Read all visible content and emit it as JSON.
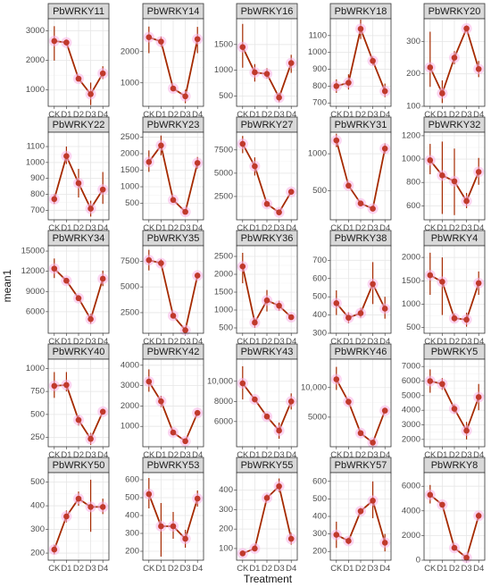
{
  "chart_data": {
    "type": "line",
    "xlabel": "Treatment",
    "ylabel": "mean1",
    "categories": [
      "CK",
      "D1",
      "D2",
      "D3",
      "D4"
    ],
    "colors": {
      "line": "#a52a00",
      "point": "#c0392b",
      "error_bar": "#a52a00",
      "halo": "#f7b3e5"
    },
    "grid": true,
    "panels": [
      {
        "title": "PbWRKY11",
        "ylim": [
          450,
          3400
        ],
        "ticks": [
          1000,
          2000,
          3000
        ],
        "tick_labels": [
          "1000",
          "2000",
          "3000"
        ],
        "values": [
          2650,
          2600,
          1380,
          860,
          1560
        ],
        "err_low": [
          1990,
          2500,
          1300,
          490,
          1370
        ],
        "err_high": [
          3150,
          2700,
          1450,
          1250,
          1800
        ]
      },
      {
        "title": "PbWRKY14",
        "ylim": [
          250,
          3050
        ],
        "ticks": [
          1000,
          2000
        ],
        "tick_labels": [
          "1000",
          "2000"
        ],
        "values": [
          2460,
          2320,
          820,
          570,
          2400
        ],
        "err_low": [
          1950,
          2150,
          750,
          350,
          1950
        ],
        "err_high": [
          2800,
          2480,
          890,
          780,
          2790
        ]
      },
      {
        "title": "PbWRKY16",
        "ylim": [
          300,
          2000
        ],
        "ticks": [
          500,
          1000,
          1500
        ],
        "tick_labels": [
          "500",
          "1000",
          "1500"
        ],
        "values": [
          1450,
          960,
          930,
          470,
          1140
        ],
        "err_low": [
          1050,
          780,
          840,
          380,
          950
        ],
        "err_high": [
          1900,
          1120,
          1040,
          560,
          1300
        ]
      },
      {
        "title": "PbWRKY18",
        "ylim": [
          680,
          1200
        ],
        "ticks": [
          700,
          800,
          900,
          1000,
          1100
        ],
        "tick_labels": [
          "700",
          "800",
          "900",
          "1000",
          "1100"
        ],
        "values": [
          800,
          820,
          1140,
          950,
          770
        ],
        "err_low": [
          760,
          780,
          1080,
          925,
          735
        ],
        "err_high": [
          840,
          870,
          1195,
          975,
          815
        ]
      },
      {
        "title": "PbWRKY20",
        "ylim": [
          100,
          370
        ],
        "ticks": [
          100,
          200,
          300
        ],
        "tick_labels": [
          "100",
          "200",
          "300"
        ],
        "values": [
          220,
          140,
          250,
          340,
          215
        ],
        "err_low": [
          160,
          110,
          230,
          330,
          190
        ],
        "err_high": [
          330,
          180,
          270,
          350,
          240
        ]
      },
      {
        "title": "PbWRKY22",
        "ylim": [
          640,
          1190
        ],
        "ticks": [
          700,
          800,
          900,
          1000,
          1100
        ],
        "tick_labels": [
          "700",
          "800",
          "900",
          "1000",
          "1100"
        ],
        "values": [
          770,
          1040,
          870,
          710,
          830
        ],
        "err_low": [
          740,
          990,
          780,
          660,
          740
        ],
        "err_high": [
          800,
          1100,
          960,
          760,
          940
        ]
      },
      {
        "title": "PbWRKY23",
        "ylim": [
          0,
          2650
        ],
        "ticks": [
          500,
          1000,
          1500,
          2000,
          2500
        ],
        "tick_labels": [
          "500",
          "1000",
          "1500",
          "2000",
          "2500"
        ],
        "values": [
          1750,
          2250,
          600,
          240,
          1720
        ],
        "err_low": [
          1450,
          1950,
          560,
          190,
          1550
        ],
        "err_high": [
          2100,
          2550,
          640,
          290,
          1900
        ]
      },
      {
        "title": "PbWRKY27",
        "ylim": [
          0,
          9400
        ],
        "ticks": [
          2500,
          5000,
          7500
        ],
        "tick_labels": [
          "2500",
          "5000",
          "7500"
        ],
        "values": [
          8150,
          5750,
          1700,
          800,
          3000
        ],
        "err_low": [
          7150,
          4750,
          1500,
          600,
          2800
        ],
        "err_high": [
          9000,
          6700,
          1900,
          1000,
          3200
        ]
      },
      {
        "title": "PbWRKY31",
        "ylim": [
          110,
          1290
        ],
        "ticks": [
          500,
          1000
        ],
        "tick_labels": [
          "500",
          "1000"
        ],
        "values": [
          1180,
          570,
          330,
          260,
          1070
        ],
        "err_low": [
          1090,
          540,
          310,
          240,
          1000
        ],
        "err_high": [
          1270,
          600,
          350,
          280,
          1140
        ]
      },
      {
        "title": "PbWRKY32",
        "ylim": [
          480,
          1230
        ],
        "ticks": [
          600,
          800,
          1000,
          1200
        ],
        "tick_labels": [
          "600",
          "800",
          "1000",
          "1200"
        ],
        "values": [
          990,
          860,
          810,
          640,
          890
        ],
        "err_low": [
          870,
          530,
          520,
          580,
          780
        ],
        "err_high": [
          1130,
          1150,
          1090,
          710,
          1010
        ]
      },
      {
        "title": "PbWRKY34",
        "ylim": [
          2800,
          15800
        ],
        "ticks": [
          6000,
          9000,
          12000,
          15000
        ],
        "tick_labels": [
          "6000",
          "9000",
          "12000",
          "15000"
        ],
        "values": [
          12400,
          10600,
          8000,
          4900,
          10900
        ],
        "err_low": [
          11000,
          10200,
          7600,
          4200,
          9800
        ],
        "err_high": [
          13900,
          11000,
          8500,
          5700,
          12100
        ]
      },
      {
        "title": "PbWRKY35",
        "ylim": [
          500,
          9000
        ],
        "ticks": [
          2500,
          5000,
          7500
        ],
        "tick_labels": [
          "2500",
          "5000",
          "7500"
        ],
        "values": [
          7600,
          7300,
          2200,
          800,
          6100
        ],
        "err_low": [
          6600,
          6900,
          2000,
          650,
          5800
        ],
        "err_high": [
          8600,
          7700,
          2400,
          950,
          6400
        ]
      },
      {
        "title": "PbWRKY36",
        "ylim": [
          350,
          2800
        ],
        "ticks": [
          500,
          1000,
          1500,
          2000,
          2500
        ],
        "tick_labels": [
          "500",
          "1000",
          "1500",
          "2000",
          "2500"
        ],
        "values": [
          2220,
          650,
          1270,
          1120,
          800
        ],
        "err_low": [
          1750,
          500,
          960,
          980,
          740
        ],
        "err_high": [
          2600,
          760,
          1560,
          1260,
          870
        ]
      },
      {
        "title": "PbWRKY38",
        "ylim": [
          300,
          780
        ],
        "ticks": [
          300,
          400,
          500,
          600,
          700
        ],
        "tick_labels": [
          "300",
          "400",
          "500",
          "600",
          "700"
        ],
        "values": [
          465,
          385,
          410,
          570,
          435
        ],
        "err_low": [
          400,
          355,
          385,
          460,
          380
        ],
        "err_high": [
          535,
          415,
          440,
          690,
          500
        ]
      },
      {
        "title": "PbWRKY4",
        "ylim": [
          380,
          2250
        ],
        "ticks": [
          500,
          1000,
          1500,
          2000
        ],
        "tick_labels": [
          "500",
          "1000",
          "1500",
          "2000"
        ],
        "values": [
          1620,
          1480,
          700,
          670,
          1450
        ],
        "err_low": [
          1200,
          770,
          620,
          520,
          1200
        ],
        "err_high": [
          2100,
          2000,
          800,
          820,
          1700
        ]
      },
      {
        "title": "PbWRKY40",
        "ylim": [
          150,
          1100
        ],
        "ticks": [
          250,
          500,
          750,
          1000
        ],
        "tick_labels": [
          "250",
          "500",
          "750",
          "1000"
        ],
        "values": [
          810,
          820,
          440,
          235,
          530
        ],
        "err_low": [
          680,
          750,
          380,
          170,
          500
        ],
        "err_high": [
          960,
          960,
          490,
          300,
          560
        ]
      },
      {
        "title": "PbWRKY42",
        "ylim": [
          0,
          4300
        ],
        "ticks": [
          1000,
          2000,
          3000,
          4000
        ],
        "tick_labels": [
          "1000",
          "2000",
          "3000",
          "4000"
        ],
        "values": [
          3200,
          2230,
          700,
          270,
          1660
        ],
        "err_low": [
          2700,
          1950,
          600,
          180,
          1560
        ],
        "err_high": [
          3800,
          2500,
          800,
          360,
          1760
        ]
      },
      {
        "title": "PbWRKY43",
        "ylim": [
          3500,
          12200
        ],
        "ticks": [
          6000,
          8000,
          10000
        ],
        "tick_labels": [
          "6000",
          "8000",
          "10,000"
        ],
        "values": [
          9800,
          8200,
          6500,
          5100,
          8000
        ],
        "err_low": [
          8200,
          7900,
          6200,
          4300,
          7200
        ],
        "err_high": [
          11500,
          8500,
          6800,
          5900,
          8800
        ]
      },
      {
        "title": "PbWRKY46",
        "ylim": [
          0,
          14800
        ],
        "ticks": [
          5000,
          10000
        ],
        "tick_labels": [
          "5000",
          "10,000"
        ],
        "values": [
          11400,
          7600,
          2300,
          700,
          6100
        ],
        "err_low": [
          9600,
          7000,
          1900,
          200,
          5700
        ],
        "err_high": [
          13500,
          8100,
          2700,
          1200,
          6500
        ]
      },
      {
        "title": "PbWRKY5",
        "ylim": [
          1500,
          7500
        ],
        "ticks": [
          2000,
          3000,
          4000,
          5000,
          6000,
          7000
        ],
        "tick_labels": [
          "2000",
          "3000",
          "4000",
          "5000",
          "6000",
          "7000"
        ],
        "values": [
          6000,
          5800,
          4100,
          2600,
          4900
        ],
        "err_low": [
          5200,
          5400,
          3800,
          2000,
          4000
        ],
        "err_high": [
          6800,
          6200,
          4400,
          3200,
          5800
        ]
      },
      {
        "title": "PbWRKY50",
        "ylim": [
          170,
          540
        ],
        "ticks": [
          200,
          300,
          400,
          500
        ],
        "tick_labels": [
          "200",
          "300",
          "400",
          "500"
        ],
        "values": [
          215,
          355,
          430,
          395,
          395
        ],
        "err_low": [
          195,
          330,
          400,
          290,
          365
        ],
        "err_high": [
          235,
          380,
          460,
          510,
          430
        ]
      },
      {
        "title": "PbWRKY53",
        "ylim": [
          150,
          640
        ],
        "ticks": [
          200,
          300,
          400,
          500,
          600
        ],
        "tick_labels": [
          "200",
          "300",
          "400",
          "500",
          "600"
        ],
        "values": [
          520,
          340,
          340,
          270,
          495
        ],
        "err_low": [
          440,
          170,
          270,
          220,
          450
        ],
        "err_high": [
          610,
          470,
          420,
          320,
          540
        ]
      },
      {
        "title": "PbWRKY55",
        "ylim": [
          40,
          490
        ],
        "ticks": [
          100,
          200,
          300,
          400
        ],
        "tick_labels": [
          "100",
          "200",
          "300",
          "400"
        ],
        "values": [
          75,
          100,
          360,
          420,
          150
        ],
        "err_low": [
          60,
          85,
          345,
          390,
          120
        ],
        "err_high": [
          90,
          120,
          380,
          460,
          180
        ]
      },
      {
        "title": "PbWRKY57",
        "ylim": [
          150,
          650
        ],
        "ticks": [
          200,
          300,
          400,
          500,
          600
        ],
        "tick_labels": [
          "200",
          "300",
          "400",
          "500",
          "600"
        ],
        "values": [
          295,
          260,
          430,
          490,
          250
        ],
        "err_low": [
          220,
          240,
          410,
          390,
          200
        ],
        "err_high": [
          370,
          280,
          450,
          600,
          300
        ]
      },
      {
        "title": "PbWRKY8",
        "ylim": [
          0,
          7100
        ],
        "ticks": [
          0,
          2000,
          4000,
          6000
        ],
        "tick_labels": [
          "0",
          "2000",
          "4000",
          "6000"
        ],
        "values": [
          5300,
          4500,
          1000,
          200,
          3600
        ],
        "err_low": [
          4600,
          4300,
          900,
          100,
          3300
        ],
        "err_high": [
          6100,
          4700,
          1100,
          400,
          3900
        ]
      }
    ]
  }
}
